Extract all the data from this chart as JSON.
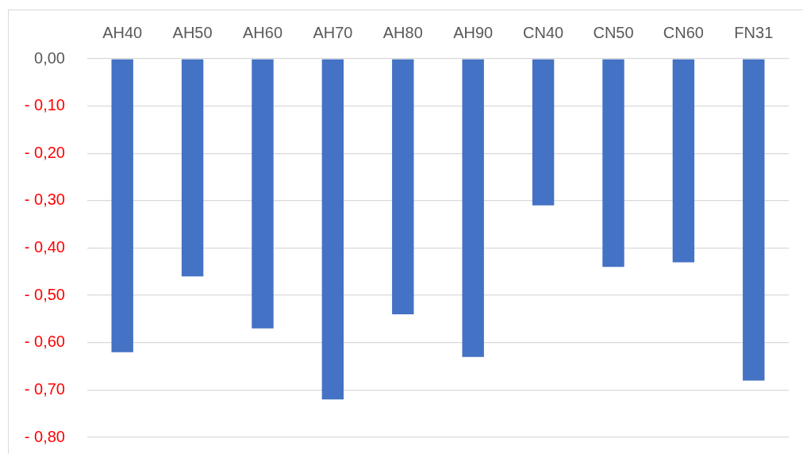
{
  "chart_data": {
    "type": "bar",
    "categories": [
      "AH40",
      "AH50",
      "AH60",
      "AH70",
      "AH80",
      "AH90",
      "CN40",
      "CN50",
      "CN60",
      "FN31"
    ],
    "values": [
      -0.62,
      -0.46,
      -0.57,
      -0.72,
      -0.54,
      -0.63,
      -0.31,
      -0.44,
      -0.43,
      -0.68
    ],
    "color": "#4472c4",
    "ylim": [
      -0.8,
      0
    ],
    "yticks": [
      {
        "value": 0,
        "label": "0,00"
      },
      {
        "value": -0.1,
        "label": "- 0,10"
      },
      {
        "value": -0.2,
        "label": "- 0,20"
      },
      {
        "value": -0.3,
        "label": "- 0,30"
      },
      {
        "value": -0.4,
        "label": "- 0,40"
      },
      {
        "value": -0.5,
        "label": "- 0,50"
      },
      {
        "value": -0.6,
        "label": "- 0,60"
      },
      {
        "value": -0.7,
        "label": "- 0,70"
      },
      {
        "value": -0.8,
        "label": "- 0,80"
      }
    ],
    "grid": "y"
  }
}
